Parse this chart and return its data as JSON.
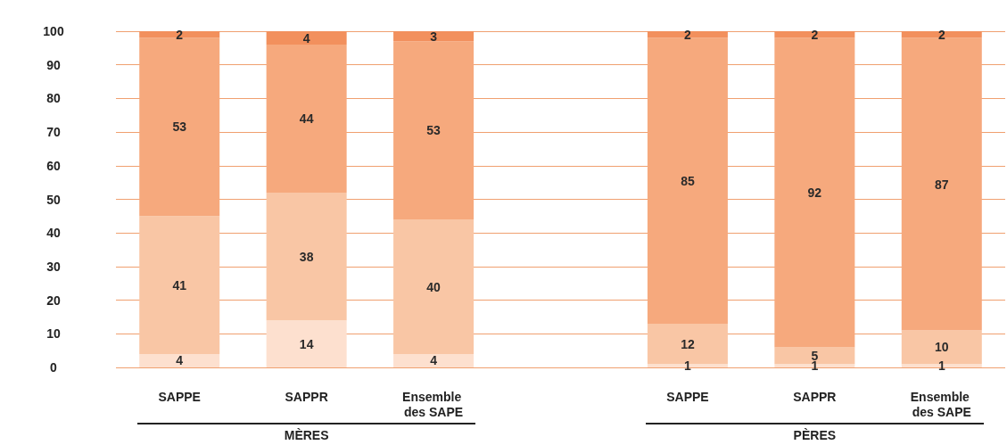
{
  "chart_data": {
    "type": "bar",
    "stacked": true,
    "data_labels": true,
    "grid": "y",
    "categories": [
      "SAPPE",
      "SAPPR",
      "Ensemble des SAPE",
      null,
      "SAPPE",
      "SAPPR",
      "Ensemble des SAPE"
    ],
    "ylim": [
      0,
      100
    ],
    "yticks": [
      0,
      10,
      20,
      30,
      40,
      50,
      60,
      70,
      80,
      90,
      100
    ],
    "annotations": [
      "MÈRES",
      "PÈRES"
    ],
    "series": [
      {
        "color": "#fde0cf",
        "values": [
          4,
          14,
          4,
          null,
          1,
          1,
          1
        ]
      },
      {
        "color": "#f9c6a5",
        "values": [
          41,
          38,
          40,
          null,
          12,
          5,
          10
        ]
      },
      {
        "color": "#f6a97d",
        "values": [
          53,
          44,
          53,
          null,
          85,
          92,
          87
        ]
      },
      {
        "color": "#f2905d",
        "values": [
          2,
          4,
          3,
          null,
          2,
          2,
          2
        ]
      }
    ]
  }
}
